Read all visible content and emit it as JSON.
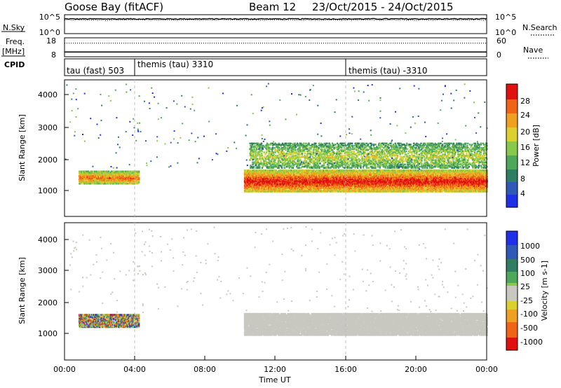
{
  "header": {
    "title": "Goose Bay (fitACF)",
    "beam": "Beam 12",
    "date_range": "23/Oct/2015 - 24/Oct/2015"
  },
  "chart_data": [
    {
      "type": "line",
      "name": "noise-panel",
      "left_label": "N.Sky",
      "right_label": "N.Search",
      "left_ticks": [
        "10^5",
        "10^0"
      ],
      "right_ticks": [
        "10^5",
        "10^0"
      ],
      "scale": "log",
      "ylim": [
        1,
        100000
      ],
      "series": [
        {
          "name": "N.Sky",
          "style": "solid",
          "level": 10000
        },
        {
          "name": "N.Search",
          "style": "dotted",
          "level": 5000
        }
      ]
    },
    {
      "type": "line",
      "name": "freq-nave-panel",
      "left_label_top": "Freq.",
      "left_label_bottom": "[MHz]",
      "left_ticks": [
        "18",
        "8"
      ],
      "right_label": "Nave",
      "right_ticks": [
        "60",
        "0"
      ],
      "series": [
        {
          "name": "Freq.",
          "style": "solid",
          "value_mhz": 10.3
        },
        {
          "name": "Nave",
          "style": "dotted",
          "value": 44
        }
      ]
    },
    {
      "type": "table",
      "name": "cpid-strip",
      "label": "CPID",
      "segments": [
        {
          "label": "tau (fast) 503",
          "start_h": 0,
          "end_h": 4
        },
        {
          "label": "themis (tau) 3310",
          "start_h": 4,
          "end_h": 16
        },
        {
          "label": "themis (tau) -3310",
          "start_h": 16,
          "end_h": 24
        }
      ]
    },
    {
      "type": "heatmap",
      "name": "power-panel",
      "ylabel": "Slant Range [km]",
      "yticks": [
        "4000",
        "3000",
        "2000",
        "1000"
      ],
      "ylim": [
        180,
        4500
      ],
      "xlim": [
        0,
        24
      ],
      "colorbar_label": "Power [dB]",
      "colorbar_ticks": [
        "28",
        "24",
        "20",
        "16",
        "12",
        "8",
        "4"
      ],
      "colorscale": [
        "#2030e8",
        "#2f58b8",
        "#2f7d62",
        "#4ea85a",
        "#86c94b",
        "#dcd030",
        "#f0a020",
        "#f06418",
        "#e01010"
      ],
      "features": [
        {
          "band": "lower",
          "start_h": 0.8,
          "end_h": 4.2,
          "range_km": [
            1200,
            1600
          ],
          "level": 0.7
        },
        {
          "band": "main",
          "start_h": 10.2,
          "end_h": 24,
          "range_km": [
            950,
            1650
          ],
          "level": 0.85
        },
        {
          "band": "upper",
          "start_h": 10.5,
          "end_h": 24,
          "range_km": [
            1700,
            2500
          ],
          "level": 0.45
        }
      ]
    },
    {
      "type": "heatmap",
      "name": "velocity-panel",
      "ylabel": "Slant Range [km]",
      "yticks": [
        "4000",
        "3000",
        "2000",
        "1000"
      ],
      "ylim": [
        180,
        4500
      ],
      "xlim": [
        0,
        24
      ],
      "colorbar_label": "Velocity [m s-1]",
      "colorbar_ticks": [
        "1000",
        "500",
        "100",
        "25",
        "-25",
        "-100",
        "-500",
        "-1000"
      ],
      "colorscale": [
        "#e01010",
        "#f06418",
        "#f0a020",
        "#dcd030",
        "#c8c8c0",
        "#86c94b",
        "#4ea85a",
        "#2f7d62",
        "#2f58b8",
        "#2030e8"
      ],
      "features": [
        {
          "band": "lower",
          "start_h": 0.8,
          "end_h": 4.2,
          "range_km": [
            1200,
            1600
          ],
          "value": "mixed"
        },
        {
          "band": "main",
          "start_h": 10.2,
          "end_h": 24,
          "range_km": [
            950,
            1650
          ],
          "value": "ground scatter"
        }
      ]
    }
  ],
  "x_axis": {
    "label": "Time UT",
    "ticks": [
      "00:00",
      "04:00",
      "08:00",
      "12:00",
      "16:00",
      "20:00",
      "00:00"
    ]
  }
}
